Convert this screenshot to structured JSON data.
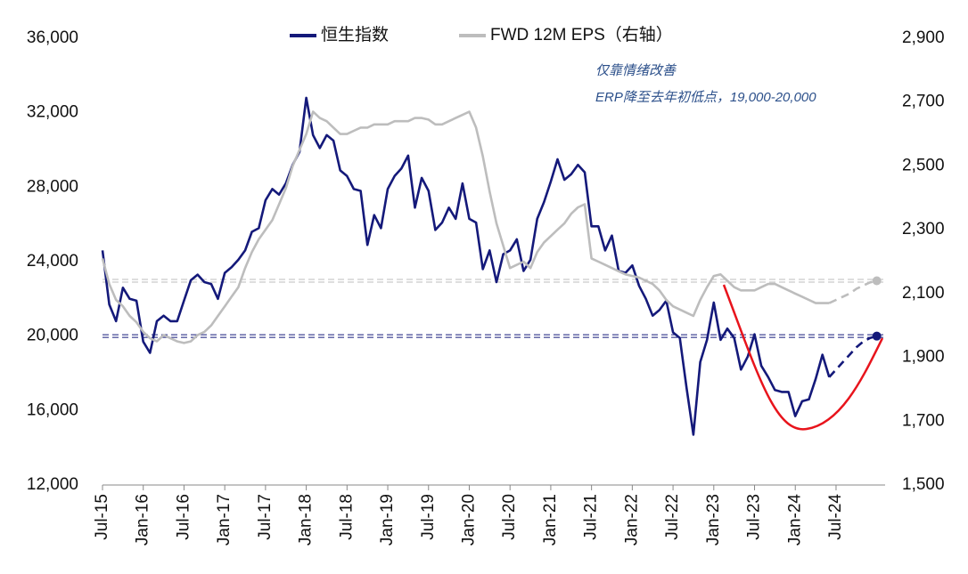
{
  "chart_data": {
    "type": "line",
    "legend": "top",
    "annotation": [
      "仅靠情绪改善",
      "ERP降至去年初低点，19,000-20,000"
    ],
    "categories": [
      "Jul-15",
      null,
      null,
      null,
      null,
      null,
      "Jan-16",
      null,
      null,
      null,
      null,
      null,
      "Jul-16",
      null,
      null,
      null,
      null,
      null,
      "Jan-17",
      null,
      null,
      null,
      null,
      null,
      "Jul-17",
      null,
      null,
      null,
      null,
      null,
      "Jan-18",
      null,
      null,
      null,
      null,
      null,
      "Jul-18",
      null,
      null,
      null,
      null,
      null,
      "Jan-19",
      null,
      null,
      null,
      null,
      null,
      "Jul-19",
      null,
      null,
      null,
      null,
      null,
      "Jan-20",
      null,
      null,
      null,
      null,
      null,
      "Jul-20",
      null,
      null,
      null,
      null,
      null,
      "Jan-21",
      null,
      null,
      null,
      null,
      null,
      "Jul-21",
      null,
      null,
      null,
      null,
      null,
      "Jan-22",
      null,
      null,
      null,
      null,
      null,
      "Jul-22",
      null,
      null,
      null,
      null,
      null,
      "Jan-23",
      null,
      null,
      null,
      null,
      null,
      "Jul-23",
      null,
      null,
      null,
      null,
      null,
      "Jan-24",
      null,
      null,
      null,
      null,
      null,
      "Jul-24",
      null,
      null,
      null,
      null,
      null,
      null
    ],
    "series": [
      {
        "name": "恒生指数",
        "color": "#14197a",
        "width": 2.6,
        "values": [
          24600,
          21700,
          20800,
          22600,
          22000,
          21900,
          19700,
          19100,
          20800,
          21100,
          20800,
          20800,
          21900,
          23000,
          23300,
          22900,
          22800,
          22000,
          23400,
          23700,
          24100,
          24600,
          25600,
          25800,
          27300,
          27900,
          27600,
          28200,
          29200,
          29900,
          32800,
          30800,
          30100,
          30800,
          30500,
          28900,
          28600,
          27900,
          27800,
          24900,
          26500,
          25800,
          27900,
          28600,
          29000,
          29700,
          26900,
          28500,
          27800,
          25700,
          26100,
          26900,
          26300,
          28200,
          26300,
          26100,
          23600,
          24600,
          22900,
          24400,
          24600,
          25200,
          23500,
          24100,
          26300,
          27200,
          28300,
          29500,
          28400,
          28700,
          29200,
          28800,
          25900,
          25900,
          24600,
          25400,
          23500,
          23400,
          23800,
          22700,
          22000,
          21100,
          21400,
          21900,
          20200,
          19900,
          17200,
          14700,
          18600,
          19800,
          21800,
          19800,
          20400,
          19900,
          18200,
          18900,
          20100,
          18400,
          17800,
          17100,
          17000,
          17000,
          15700,
          16500,
          16600,
          17700,
          19000,
          17800,
          null,
          null,
          null,
          null,
          null,
          null,
          null
        ]
      },
      {
        "name": "FWD 12M EPS（右轴）",
        "color": "#bdbdbd",
        "axis": "y2",
        "width": 2.6,
        "values": [
          2210,
          2130,
          2080,
          2060,
          2030,
          2010,
          1980,
          1960,
          1950,
          1970,
          1960,
          1950,
          1945,
          1950,
          1970,
          1980,
          2000,
          2030,
          2060,
          2090,
          2120,
          2180,
          2230,
          2270,
          2300,
          2330,
          2380,
          2430,
          2500,
          2550,
          2600,
          2670,
          2650,
          2640,
          2620,
          2600,
          2600,
          2610,
          2620,
          2620,
          2630,
          2630,
          2630,
          2640,
          2640,
          2640,
          2650,
          2650,
          2645,
          2630,
          2630,
          2640,
          2650,
          2660,
          2670,
          2620,
          2530,
          2420,
          2320,
          2250,
          2180,
          2190,
          2200,
          2180,
          2230,
          2260,
          2280,
          2300,
          2320,
          2350,
          2370,
          2380,
          2210,
          2200,
          2190,
          2180,
          2170,
          2160,
          2155,
          2150,
          2140,
          2130,
          2110,
          2080,
          2060,
          2050,
          2040,
          2030,
          2080,
          2120,
          2155,
          2160,
          2140,
          2120,
          2110,
          2110,
          2110,
          2120,
          2130,
          2130,
          2120,
          2110,
          2100,
          2090,
          2080,
          2070,
          2070,
          2070,
          null,
          null,
          null,
          null,
          null,
          null,
          null
        ]
      },
      {
        "color": "#14197a",
        "dash": true,
        "end_marker": true,
        "width": 2.6,
        "values": [
          null,
          null,
          null,
          null,
          null,
          null,
          null,
          null,
          null,
          null,
          null,
          null,
          null,
          null,
          null,
          null,
          null,
          null,
          null,
          null,
          null,
          null,
          null,
          null,
          null,
          null,
          null,
          null,
          null,
          null,
          null,
          null,
          null,
          null,
          null,
          null,
          null,
          null,
          null,
          null,
          null,
          null,
          null,
          null,
          null,
          null,
          null,
          null,
          null,
          null,
          null,
          null,
          null,
          null,
          null,
          null,
          null,
          null,
          null,
          null,
          null,
          null,
          null,
          null,
          null,
          null,
          null,
          null,
          null,
          null,
          null,
          null,
          null,
          null,
          null,
          null,
          null,
          null,
          null,
          null,
          null,
          null,
          null,
          null,
          null,
          null,
          null,
          null,
          null,
          null,
          null,
          null,
          null,
          null,
          null,
          null,
          null,
          null,
          null,
          null,
          null,
          null,
          null,
          null,
          null,
          null,
          null,
          17800,
          18200,
          18600,
          19000,
          19400,
          19700,
          19900,
          20000
        ]
      },
      {
        "color": "#bdbdbd",
        "axis": "y2",
        "dash": true,
        "end_marker": true,
        "width": 2.6,
        "values": [
          null,
          null,
          null,
          null,
          null,
          null,
          null,
          null,
          null,
          null,
          null,
          null,
          null,
          null,
          null,
          null,
          null,
          null,
          null,
          null,
          null,
          null,
          null,
          null,
          null,
          null,
          null,
          null,
          null,
          null,
          null,
          null,
          null,
          null,
          null,
          null,
          null,
          null,
          null,
          null,
          null,
          null,
          null,
          null,
          null,
          null,
          null,
          null,
          null,
          null,
          null,
          null,
          null,
          null,
          null,
          null,
          null,
          null,
          null,
          null,
          null,
          null,
          null,
          null,
          null,
          null,
          null,
          null,
          null,
          null,
          null,
          null,
          null,
          null,
          null,
          null,
          null,
          null,
          null,
          null,
          null,
          null,
          null,
          null,
          null,
          null,
          null,
          null,
          null,
          null,
          null,
          null,
          null,
          null,
          null,
          null,
          null,
          null,
          null,
          null,
          null,
          null,
          null,
          null,
          null,
          null,
          null,
          2070,
          2080,
          2090,
          2100,
          2115,
          2125,
          2135,
          2140
        ]
      }
    ],
    "reference_lines": [
      {
        "value": 20000,
        "color": "#14197a"
      },
      {
        "value": 2140,
        "axis": "y2",
        "color": "#bdbdbd"
      }
    ],
    "ylim": [
      12000,
      36000
    ],
    "yticks": [
      {
        "value": 12000,
        "label": "12,000"
      },
      {
        "value": 16000,
        "label": "16,000"
      },
      {
        "value": 20000,
        "label": "20,000"
      },
      {
        "value": 24000,
        "label": "24,000"
      },
      {
        "value": 28000,
        "label": "28,000"
      },
      {
        "value": 32000,
        "label": "32,000"
      },
      {
        "value": 36000,
        "label": "36,000"
      }
    ],
    "y2lim": [
      1500,
      2900
    ],
    "y2ticks": [
      {
        "value": 1500,
        "label": "1,500"
      },
      {
        "value": 1700,
        "label": "1,700"
      },
      {
        "value": 1900,
        "label": "1,900"
      },
      {
        "value": 2100,
        "label": "2,100"
      },
      {
        "value": 2300,
        "label": "2,300"
      },
      {
        "value": 2500,
        "label": "2,500"
      },
      {
        "value": 2700,
        "label": "2,700"
      },
      {
        "value": 2900,
        "label": "2,900"
      }
    ]
  }
}
